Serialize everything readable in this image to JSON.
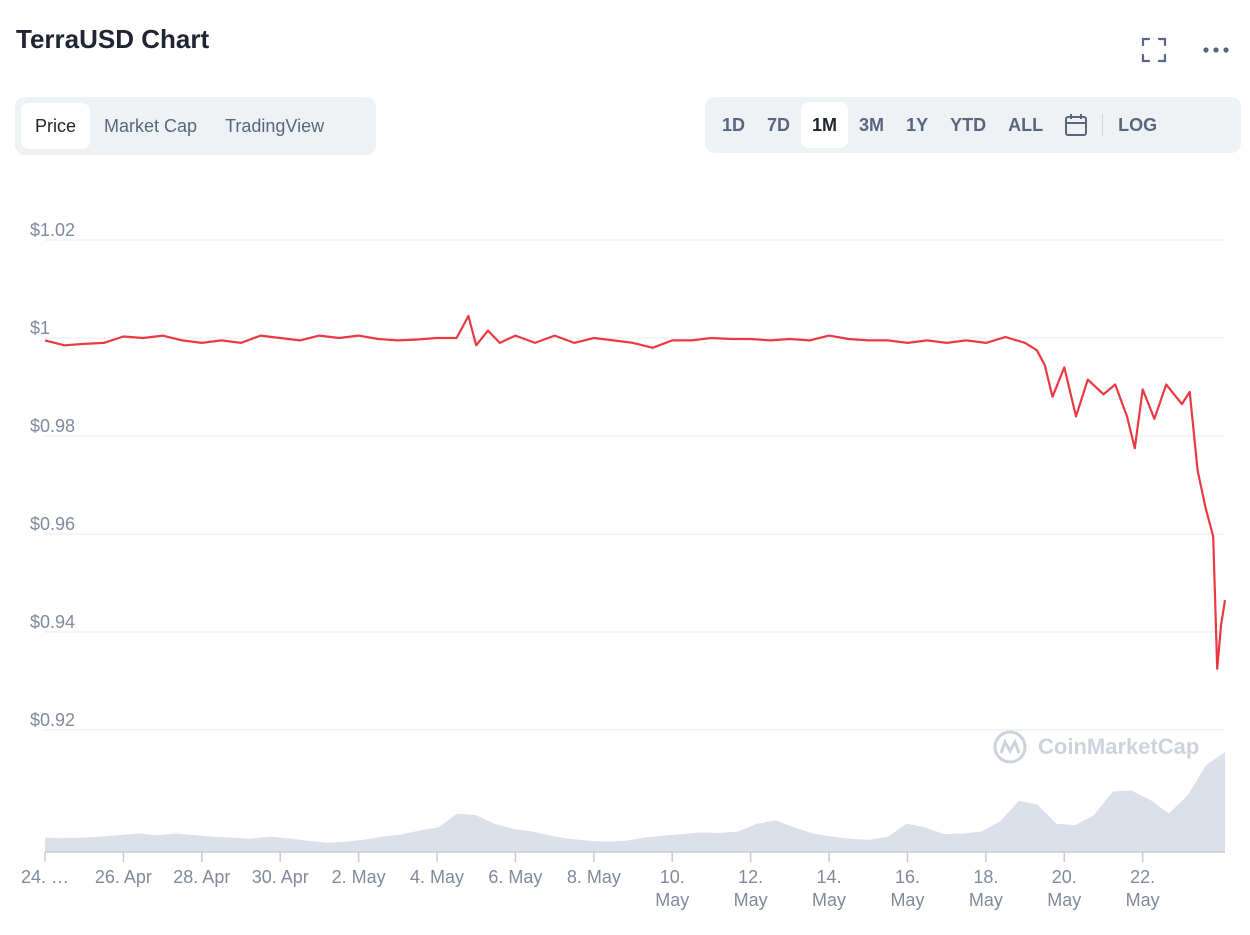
{
  "header": {
    "title": "TerraUSD Chart"
  },
  "icons": {
    "fullscreen": "fullscreen-icon",
    "more": "more-icon",
    "calendar": "calendar-icon",
    "logo": "coinmarketcap-logo-icon"
  },
  "tabs": [
    {
      "label": "Price",
      "active": true
    },
    {
      "label": "Market Cap",
      "active": false
    },
    {
      "label": "TradingView",
      "active": false
    }
  ],
  "ranges": [
    {
      "label": "1D",
      "active": false
    },
    {
      "label": "7D",
      "active": false
    },
    {
      "label": "1M",
      "active": true
    },
    {
      "label": "3M",
      "active": false
    },
    {
      "label": "1Y",
      "active": false
    },
    {
      "label": "YTD",
      "active": false
    },
    {
      "label": "ALL",
      "active": false
    }
  ],
  "log_label": "LOG",
  "watermark": "CoinMarketCap",
  "colors": {
    "line": "#ea3943",
    "grid": "#eff2f5",
    "axis_text": "#808a9d",
    "volume": "#cfd6e4"
  },
  "chart_data": {
    "type": "line",
    "title": "TerraUSD Chart",
    "ylim": [
      0.92,
      1.02
    ],
    "yticks": [
      "$1.02",
      "$1",
      "$0.98",
      "$0.96",
      "$0.94",
      "$0.92"
    ],
    "ytick_values": [
      1.02,
      1.0,
      0.98,
      0.96,
      0.94,
      0.92
    ],
    "xlim": [
      24,
      54.1
    ],
    "xticks": [
      {
        "x": 24,
        "label": "24. …"
      },
      {
        "x": 26,
        "label": "26. Apr"
      },
      {
        "x": 28,
        "label": "28. Apr"
      },
      {
        "x": 30,
        "label": "30. Apr"
      },
      {
        "x": 32,
        "label": "2. May"
      },
      {
        "x": 34,
        "label": "4. May"
      },
      {
        "x": 36,
        "label": "6. May"
      },
      {
        "x": 38,
        "label": "8. May"
      },
      {
        "x": 40,
        "label": "10. May"
      },
      {
        "x": 42,
        "label": "12. May"
      },
      {
        "x": 44,
        "label": "14. May"
      },
      {
        "x": 46,
        "label": "16. May"
      },
      {
        "x": 48,
        "label": "18. May"
      },
      {
        "x": 50,
        "label": "20. May"
      },
      {
        "x": 52,
        "label": "22. May"
      }
    ],
    "grid": true,
    "series": [
      {
        "x": [
          24,
          24.5,
          25,
          25.5,
          26,
          26.5,
          27,
          27.5,
          28,
          28.5,
          29,
          29.5,
          30,
          30.5,
          31,
          31.5,
          32,
          32.5,
          33,
          33.5,
          34,
          34.5,
          34.8,
          35,
          35.3,
          35.6,
          36,
          36.5,
          37,
          37.5,
          38,
          38.5,
          39,
          39.5,
          40,
          40.5,
          41,
          41.5,
          42,
          42.5,
          43,
          43.5,
          44,
          44.5,
          45,
          45.5,
          46,
          46.5,
          47,
          47.5,
          48,
          48.5,
          49,
          49.3,
          49.5,
          49.7,
          50,
          50.3,
          50.6,
          51,
          51.3,
          51.6,
          51.8,
          52,
          52.3,
          52.6,
          53,
          53.2,
          53.4,
          53.6,
          53.8,
          53.9,
          54,
          54.1
        ],
        "y": [
          0.9995,
          0.9985,
          0.9988,
          0.999,
          1.0003,
          1.0,
          1.0005,
          0.9995,
          0.999,
          0.9995,
          0.999,
          1.0005,
          1.0,
          0.9995,
          1.0005,
          1.0,
          1.0005,
          0.9998,
          0.9995,
          0.9997,
          1.0,
          1.0,
          1.0045,
          0.9985,
          1.0015,
          0.999,
          1.0005,
          0.999,
          1.0005,
          0.999,
          1.0,
          0.9995,
          0.999,
          0.998,
          0.9995,
          0.9995,
          1.0,
          0.9998,
          0.9998,
          0.9995,
          0.9998,
          0.9995,
          1.0005,
          0.9998,
          0.9995,
          0.9995,
          0.999,
          0.9995,
          0.999,
          0.9995,
          0.999,
          1.0002,
          0.999,
          0.9975,
          0.9945,
          0.988,
          0.994,
          0.984,
          0.9915,
          0.9885,
          0.9905,
          0.984,
          0.9775,
          0.9895,
          0.9835,
          0.9905,
          0.9865,
          0.989,
          0.973,
          0.9655,
          0.9595,
          0.9325,
          0.9415,
          0.9465
        ]
      }
    ],
    "volume": [
      0.28,
      0.27,
      0.28,
      0.3,
      0.33,
      0.36,
      0.33,
      0.36,
      0.33,
      0.3,
      0.28,
      0.26,
      0.3,
      0.27,
      0.22,
      0.18,
      0.2,
      0.24,
      0.3,
      0.34,
      0.42,
      0.48,
      0.75,
      0.72,
      0.55,
      0.45,
      0.4,
      0.32,
      0.26,
      0.22,
      0.2,
      0.22,
      0.28,
      0.32,
      0.35,
      0.38,
      0.37,
      0.4,
      0.55,
      0.62,
      0.48,
      0.36,
      0.3,
      0.26,
      0.24,
      0.3,
      0.55,
      0.48,
      0.35,
      0.36,
      0.4,
      0.6,
      1.0,
      0.92,
      0.55,
      0.52,
      0.72,
      1.18,
      1.2,
      1.02,
      0.75,
      1.1,
      1.7,
      1.95
    ]
  }
}
